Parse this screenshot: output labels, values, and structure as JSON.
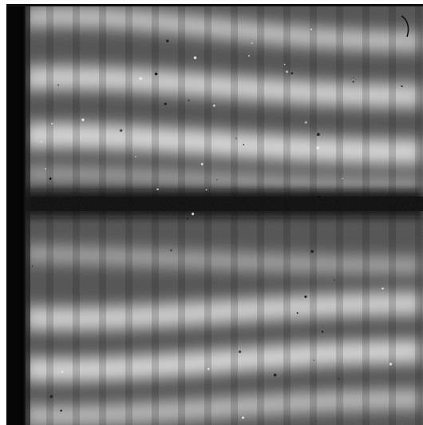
{
  "image": {
    "kind": "grayscale detector flat-field exposure",
    "palette": {
      "background": "#ffffff",
      "dark_band": "#0b0b0b",
      "mid_gray": "#5e5e5e",
      "bright_fringe": "#e6e6e6"
    },
    "features": {
      "left_dark_edge": true,
      "horizontal_dark_gap": true,
      "vertical_column_pattern": true,
      "upper_fringe_count": 4,
      "lower_fringe_count": 4,
      "dust_specks": true
    }
  }
}
